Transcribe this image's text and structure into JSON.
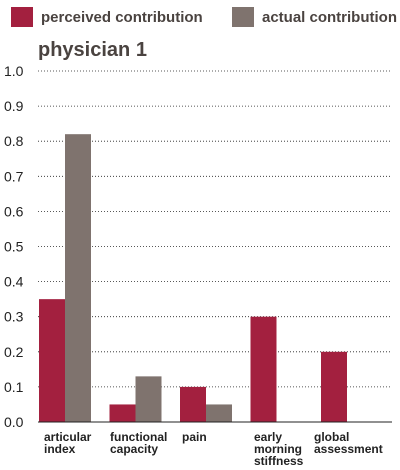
{
  "chart_data": {
    "type": "bar",
    "title": "physician 1",
    "categories": [
      [
        "articular",
        "index"
      ],
      [
        "functional",
        "capacity"
      ],
      [
        "pain"
      ],
      [
        "early",
        "morning",
        "stiffness"
      ],
      [
        "global",
        "assessment"
      ]
    ],
    "series": [
      {
        "name": "perceived contribution",
        "color": "#a3203f",
        "values": [
          0.35,
          0.05,
          0.1,
          0.3,
          0.2
        ]
      },
      {
        "name": "actual contribution",
        "color": "#7f736e",
        "values": [
          0.82,
          0.13,
          0.05,
          0,
          0
        ]
      }
    ],
    "yticks": [
      "0.0",
      "0.1",
      "0.2",
      "0.3",
      "0.4",
      "0.5",
      "0.6",
      "0.7",
      "0.8",
      "0.9",
      "1.0"
    ],
    "ylim": [
      0,
      1.0
    ],
    "grid": true,
    "legend_position": "top"
  }
}
